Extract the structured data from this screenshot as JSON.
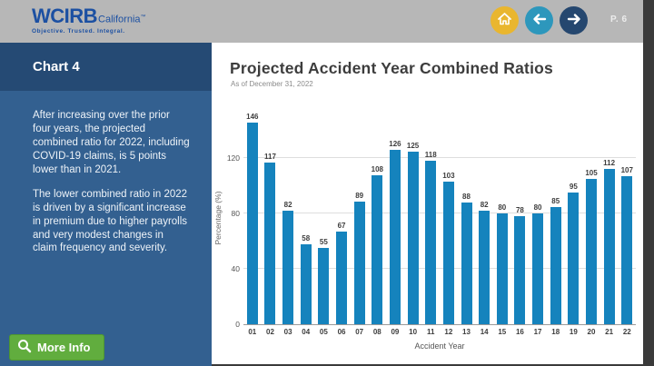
{
  "header": {
    "logo": {
      "brand": "WCIRB",
      "region": "California",
      "trademark": "™",
      "tagline": "Objective. Trusted. Integral."
    },
    "page_label": "P. 6"
  },
  "sidebar": {
    "title": "Chart 4",
    "paragraphs": [
      "After increasing over the prior four years, the projected combined ratio for 2022, including COVID-19 claims, is 5 points lower than in 2021.",
      "The lower combined ratio in 2022 is driven by a significant increase in premium due to higher payrolls and very modest changes in claim frequency and severity."
    ],
    "more_info_label": "More Info"
  },
  "main": {
    "title": "Projected Accident Year Combined Ratios",
    "subtitle": "As of December 31, 2022"
  },
  "chart_data": {
    "type": "bar",
    "title": "Projected Accident Year Combined Ratios",
    "subtitle": "As of December 31, 2022",
    "categories": [
      "01",
      "02",
      "03",
      "04",
      "05",
      "06",
      "07",
      "08",
      "09",
      "10",
      "11",
      "12",
      "13",
      "14",
      "15",
      "16",
      "17",
      "18",
      "19",
      "20",
      "21",
      "22"
    ],
    "values": [
      146,
      117,
      82,
      58,
      55,
      67,
      89,
      108,
      126,
      125,
      118,
      103,
      88,
      82,
      80,
      78,
      80,
      85,
      95,
      105,
      112,
      107
    ],
    "xlabel": "Accident Year",
    "ylabel": "Percentage (%)",
    "yticks": [
      0,
      40,
      80,
      120
    ],
    "ylim": [
      0,
      155
    ],
    "grid": true,
    "data_labels": true,
    "legend": "none",
    "bar_color": "#1583bd"
  },
  "colors": {
    "header_bg": "#b7b7b7",
    "logo_blue": "#1c50a2",
    "sidebar_header_bg": "#254a74",
    "sidebar_body_bg": "#336090",
    "home_button": "#e9b62f",
    "prev_button": "#2d97bc",
    "next_button": "#25476f",
    "more_info_green": "#61ad3e",
    "bar_blue": "#1583bd"
  }
}
